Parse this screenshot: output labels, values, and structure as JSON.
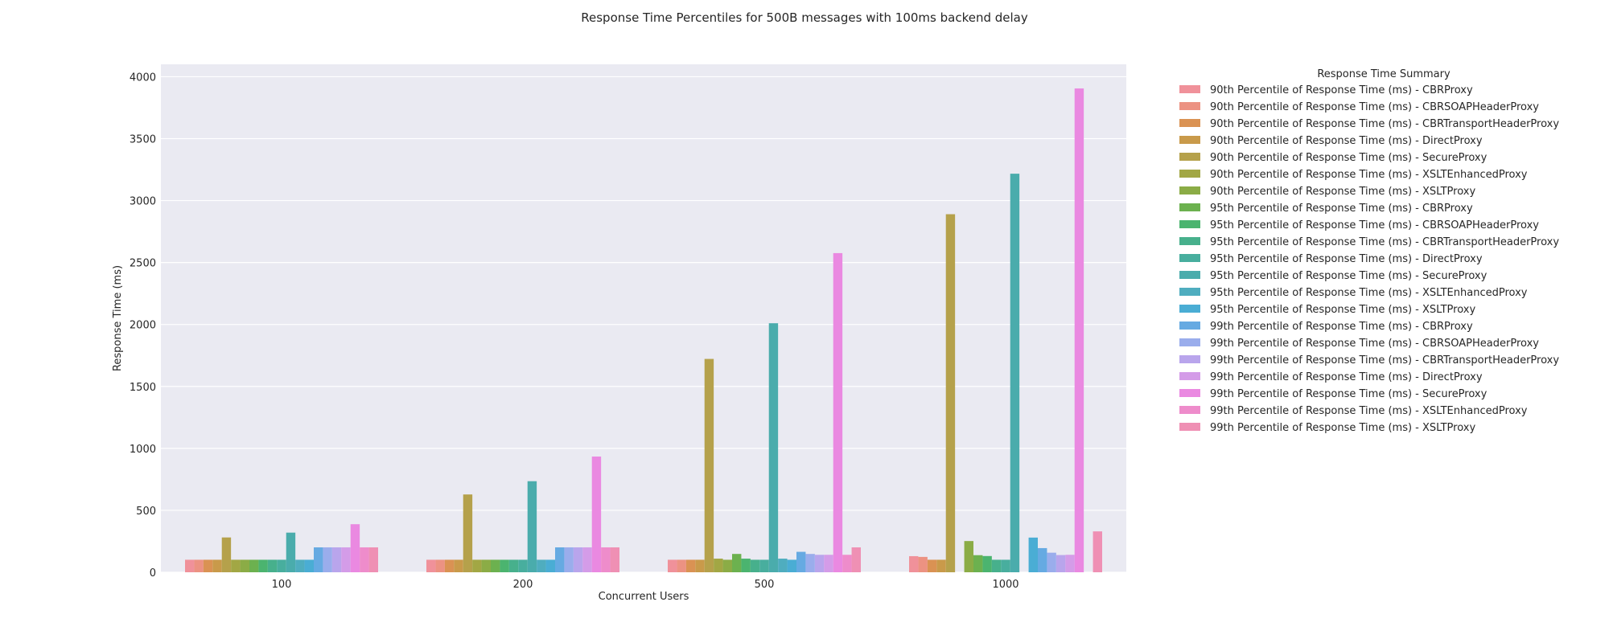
{
  "chart_data": {
    "type": "bar",
    "title": "Response Time Percentiles for 500B messages with 100ms backend delay",
    "xlabel": "Concurrent Users",
    "ylabel": "Response Time (ms)",
    "categories": [
      "100",
      "200",
      "500",
      "1000"
    ],
    "ylim": [
      0,
      4100
    ],
    "yticks": [
      0,
      500,
      1000,
      1500,
      2000,
      2500,
      3000,
      3500,
      4000
    ],
    "grid": true,
    "legend_title": "Response Time Summary",
    "legend_position": "outside-right",
    "series": [
      {
        "name": "90th Percentile of Response Time (ms) - CBRProxy",
        "color": "#f0919a",
        "values": [
          101,
          101,
          101,
          130
        ]
      },
      {
        "name": "90th Percentile of Response Time (ms) - CBRSOAPHeaderProxy",
        "color": "#ec9282",
        "values": [
          101,
          101,
          101,
          124
        ]
      },
      {
        "name": "90th Percentile of Response Time (ms) - CBRTransportHeaderProxy",
        "color": "#da9253",
        "values": [
          101,
          101,
          101,
          101
        ]
      },
      {
        "name": "90th Percentile of Response Time (ms) - DirectProxy",
        "color": "#c99a4a",
        "values": [
          101,
          101,
          101,
          101
        ]
      },
      {
        "name": "90th Percentile of Response Time (ms) - SecureProxy",
        "color": "#b5a14b",
        "values": [
          281,
          628,
          1722,
          2890
        ]
      },
      {
        "name": "90th Percentile of Response Time (ms) - XSLTEnhancedProxy",
        "color": "#a2a744",
        "values": [
          101,
          101,
          110,
          null
        ]
      },
      {
        "name": "90th Percentile of Response Time (ms) - XSLTProxy",
        "color": "#8bac46",
        "values": [
          101,
          101,
          101,
          252
        ]
      },
      {
        "name": "95th Percentile of Response Time (ms) - CBRProxy",
        "color": "#6cb14f",
        "values": [
          101,
          101,
          148,
          138
        ]
      },
      {
        "name": "95th Percentile of Response Time (ms) - CBRSOAPHeaderProxy",
        "color": "#4bb46f",
        "values": [
          101,
          101,
          110,
          131
        ]
      },
      {
        "name": "95th Percentile of Response Time (ms) - CBRTransportHeaderProxy",
        "color": "#47b08c",
        "values": [
          101,
          101,
          101,
          101
        ]
      },
      {
        "name": "95th Percentile of Response Time (ms) - DirectProxy",
        "color": "#48ae9e",
        "values": [
          101,
          101,
          101,
          101
        ]
      },
      {
        "name": "95th Percentile of Response Time (ms) - SecureProxy",
        "color": "#4aacac",
        "values": [
          320,
          735,
          2010,
          3217
        ]
      },
      {
        "name": "95th Percentile of Response Time (ms) - XSLTEnhancedProxy",
        "color": "#4fadbf",
        "values": [
          101,
          101,
          110,
          null
        ]
      },
      {
        "name": "95th Percentile of Response Time (ms) - XSLTProxy",
        "color": "#4aadd4",
        "values": [
          101,
          101,
          101,
          280
        ]
      },
      {
        "name": "99th Percentile of Response Time (ms) - CBRProxy",
        "color": "#66aae2",
        "values": [
          201,
          201,
          165,
          195
        ]
      },
      {
        "name": "99th Percentile of Response Time (ms) - CBRSOAPHeaderProxy",
        "color": "#9aadec",
        "values": [
          201,
          201,
          148,
          158
        ]
      },
      {
        "name": "99th Percentile of Response Time (ms) - CBRTransportHeaderProxy",
        "color": "#b9a5ec",
        "values": [
          201,
          201,
          141,
          139
        ]
      },
      {
        "name": "99th Percentile of Response Time (ms) - DirectProxy",
        "color": "#d49ce8",
        "values": [
          201,
          201,
          141,
          141
        ]
      },
      {
        "name": "99th Percentile of Response Time (ms) - SecureProxy",
        "color": "#ea89e1",
        "values": [
          388,
          934,
          2576,
          3905
        ]
      },
      {
        "name": "99th Percentile of Response Time (ms) - XSLTEnhancedProxy",
        "color": "#ee8ccb",
        "values": [
          201,
          201,
          141,
          null
        ]
      },
      {
        "name": "99th Percentile of Response Time (ms) - XSLTProxy",
        "color": "#ef90b4",
        "values": [
          201,
          201,
          201,
          330
        ]
      }
    ]
  }
}
